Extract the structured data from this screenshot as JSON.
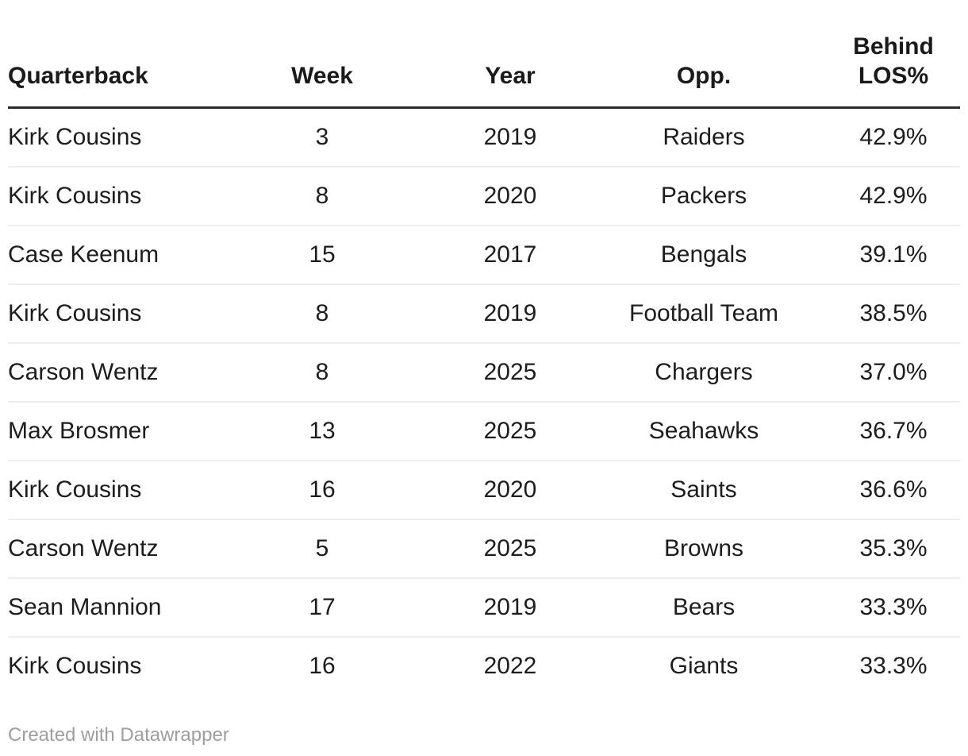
{
  "chart_data": {
    "type": "table",
    "columns": [
      {
        "key": "quarterback",
        "label": "Quarterback",
        "align": "left"
      },
      {
        "key": "week",
        "label": "Week",
        "align": "center"
      },
      {
        "key": "year",
        "label": "Year",
        "align": "center"
      },
      {
        "key": "opp",
        "label": "Opp.",
        "align": "center"
      },
      {
        "key": "behind_los",
        "label": "Behind LOS%",
        "align": "center"
      }
    ],
    "rows": [
      [
        "Kirk Cousins",
        "3",
        "2019",
        "Raiders",
        "42.9%"
      ],
      [
        "Kirk Cousins",
        "8",
        "2020",
        "Packers",
        "42.9%"
      ],
      [
        "Case Keenum",
        "15",
        "2017",
        "Bengals",
        "39.1%"
      ],
      [
        "Kirk Cousins",
        "8",
        "2019",
        "Football Team",
        "38.5%"
      ],
      [
        "Carson Wentz",
        "8",
        "2025",
        "Chargers",
        "37.0%"
      ],
      [
        "Max Brosmer",
        "13",
        "2025",
        "Seahawks",
        "36.7%"
      ],
      [
        "Kirk Cousins",
        "16",
        "2020",
        "Saints",
        "36.6%"
      ],
      [
        "Carson Wentz",
        "5",
        "2025",
        "Browns",
        "35.3%"
      ],
      [
        "Sean Mannion",
        "17",
        "2019",
        "Bears",
        "33.3%"
      ],
      [
        "Kirk Cousins",
        "16",
        "2022",
        "Giants",
        "33.3%"
      ]
    ],
    "layout_hints": {
      "header_rule": "thick dark line under header",
      "row_dividers": "thin light gray lines between rows, none after last row"
    }
  },
  "footer": {
    "attribution_label": "Created with Datawrapper"
  },
  "colors": {
    "header_text": "#1a1a1a",
    "body_text": "#1d1d1d",
    "header_rule": "#2b2b2b",
    "row_divider": "#eeeeee",
    "attribution_text": "#9e9e9e",
    "background": "#ffffff"
  }
}
